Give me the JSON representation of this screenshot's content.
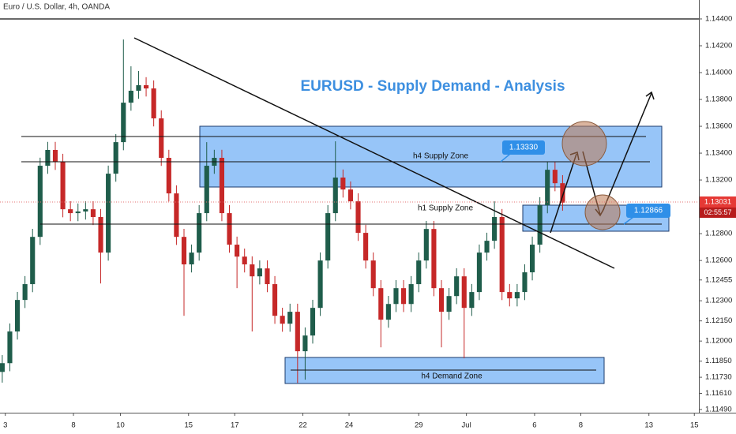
{
  "chart_data": {
    "type": "candlestick",
    "title": "Euro / U.S. Dollar, 4h, OANDA",
    "up_color": "#1f5d4b",
    "down_color": "#c62828",
    "grid": false,
    "xlim": [
      -0.3,
      92
    ],
    "xticks": [
      {
        "value": 0.4,
        "label": "3"
      },
      {
        "value": 9.4,
        "label": "8"
      },
      {
        "value": 15.6,
        "label": "10"
      },
      {
        "value": 24.6,
        "label": "15"
      },
      {
        "value": 30.7,
        "label": "17"
      },
      {
        "value": 39.7,
        "label": "22"
      },
      {
        "value": 45.8,
        "label": "24"
      },
      {
        "value": 55,
        "label": "29"
      },
      {
        "value": 61.3,
        "label": "Jul"
      },
      {
        "value": 70.3,
        "label": "6"
      },
      {
        "value": 76.4,
        "label": "8"
      },
      {
        "value": 85.4,
        "label": "13"
      },
      {
        "value": 91.4,
        "label": "15"
      }
    ],
    "ylim": [
      1.11466,
      1.14541
    ],
    "yticks": [
      {
        "value": 1.144,
        "label": "1.14400"
      },
      {
        "value": 1.142,
        "label": "1.14200"
      },
      {
        "value": 1.14,
        "label": "1.14000"
      },
      {
        "value": 1.138,
        "label": "1.13800"
      },
      {
        "value": 1.136,
        "label": "1.13600"
      },
      {
        "value": 1.134,
        "label": "1.13400"
      },
      {
        "value": 1.132,
        "label": "1.13200"
      },
      {
        "value": 1.128,
        "label": "1.12800"
      },
      {
        "value": 1.126,
        "label": "1.12600"
      },
      {
        "value": 1.12455,
        "label": "1.12455"
      },
      {
        "value": 1.123,
        "label": "1.12300"
      },
      {
        "value": 1.1215,
        "label": "1.12150"
      },
      {
        "value": 1.12,
        "label": "1.12000"
      },
      {
        "value": 1.1185,
        "label": "1.11850"
      },
      {
        "value": 1.1173,
        "label": "1.11730"
      },
      {
        "value": 1.1161,
        "label": "1.11610"
      },
      {
        "value": 1.1149,
        "label": "1.11490"
      }
    ],
    "open": [
      1.1177,
      1.11835,
      1.12071,
      1.12306,
      1.12424,
      1.12776,
      1.13306,
      1.13424,
      1.13335,
      1.12982,
      1.12953,
      1.12965,
      1.12982,
      1.12924,
      1.12659,
      1.13247,
      1.13482,
      1.13776,
      1.13865,
      1.13906,
      1.13882,
      1.13659,
      1.13365,
      1.131,
      1.12776,
      1.12571,
      1.12659,
      1.12953,
      1.13306,
      1.13365,
      1.12953,
      1.12718,
      1.12629,
      1.12571,
      1.12482,
      1.12541,
      1.12424,
      1.12188,
      1.12129,
      1.12218,
      1.11924,
      1.12041,
      1.12247,
      1.126,
      1.12953,
      1.13218,
      1.13129,
      1.13041,
      1.12806,
      1.126,
      1.12394,
      1.12159,
      1.12276,
      1.12394,
      1.12276,
      1.12424,
      1.126,
      1.12835,
      1.12394,
      1.12218,
      1.12335,
      1.12482,
      1.12247,
      1.12365,
      1.12659,
      1.12747,
      1.12924,
      1.12365,
      1.12318,
      1.12365,
      1.12512,
      1.12718,
      1.13012,
      1.13276,
      1.13176
    ],
    "high": [
      1.11895,
      1.12131,
      1.12366,
      1.12484,
      1.12836,
      1.13366,
      1.13484,
      1.13484,
      1.13395,
      1.13042,
      1.13025,
      1.13042,
      1.13042,
      1.12984,
      1.13307,
      1.13542,
      1.14247,
      1.14047,
      1.14012,
      1.13966,
      1.13942,
      1.13719,
      1.13425,
      1.1316,
      1.12836,
      1.12719,
      1.13013,
      1.13482,
      1.13425,
      1.13425,
      1.13013,
      1.12778,
      1.12689,
      1.12631,
      1.12601,
      1.12601,
      1.12484,
      1.12248,
      1.12278,
      1.12278,
      1.12101,
      1.12307,
      1.1266,
      1.13013,
      1.13488,
      1.13278,
      1.13189,
      1.13101,
      1.12866,
      1.1266,
      1.12454,
      1.12336,
      1.12454,
      1.12454,
      1.12484,
      1.1266,
      1.12895,
      1.12895,
      1.12454,
      1.12395,
      1.12542,
      1.12542,
      1.12425,
      1.12719,
      1.12807,
      1.13041,
      1.12984,
      1.12425,
      1.12425,
      1.12572,
      1.12778,
      1.13072,
      1.13336,
      1.13336,
      1.13236
    ],
    "low": [
      1.1169,
      1.11775,
      1.12011,
      1.12246,
      1.12364,
      1.12716,
      1.13246,
      1.13275,
      1.12922,
      1.12893,
      1.12893,
      1.12905,
      1.12864,
      1.12429,
      1.12599,
      1.13187,
      1.13422,
      1.13716,
      1.13805,
      1.13822,
      1.13599,
      1.13305,
      1.1304,
      1.12716,
      1.12188,
      1.12511,
      1.12599,
      1.12893,
      1.13246,
      1.12893,
      1.12658,
      1.12394,
      1.12511,
      1.12071,
      1.12422,
      1.12364,
      1.12128,
      1.12069,
      1.12069,
      1.11688,
      1.11712,
      1.11981,
      1.12187,
      1.1254,
      1.12893,
      1.13069,
      1.12981,
      1.12746,
      1.1254,
      1.12334,
      1.11953,
      1.12099,
      1.12216,
      1.12216,
      1.12216,
      1.12364,
      1.1254,
      1.12334,
      1.11953,
      1.12158,
      1.12275,
      1.11871,
      1.12187,
      1.12305,
      1.12599,
      1.12687,
      1.12305,
      1.12258,
      1.12258,
      1.12305,
      1.12452,
      1.12658,
      1.12952,
      1.13116,
      1.12971
    ],
    "close": [
      1.11835,
      1.12071,
      1.12306,
      1.12424,
      1.12776,
      1.13306,
      1.13424,
      1.13335,
      1.12982,
      1.12953,
      1.12965,
      1.12982,
      1.12924,
      1.12659,
      1.13247,
      1.13482,
      1.13776,
      1.13865,
      1.13906,
      1.13882,
      1.13659,
      1.13365,
      1.131,
      1.12776,
      1.12571,
      1.12659,
      1.12953,
      1.13306,
      1.13365,
      1.12953,
      1.12718,
      1.12629,
      1.12571,
      1.12482,
      1.12541,
      1.12424,
      1.12188,
      1.12129,
      1.12218,
      1.11924,
      1.12041,
      1.12247,
      1.126,
      1.12953,
      1.13218,
      1.13129,
      1.13041,
      1.12806,
      1.126,
      1.12394,
      1.12159,
      1.12276,
      1.12394,
      1.12276,
      1.12424,
      1.126,
      1.12835,
      1.12394,
      1.12218,
      1.12335,
      1.12482,
      1.12247,
      1.12365,
      1.12659,
      1.12747,
      1.12924,
      1.12365,
      1.12318,
      1.12365,
      1.12512,
      1.12718,
      1.13012,
      1.13276,
      1.13176,
      1.13031
    ],
    "annotations": {
      "headline": "EURUSD - Supply Demand - Analysis",
      "zones": [
        "h4 Supply Zone",
        "h1 Supply Zone",
        "h4 Demand Zone"
      ],
      "callouts": [
        "1.13330",
        "1.12866"
      ],
      "last_price": "1.13031",
      "countdown": "02:55:57"
    }
  }
}
